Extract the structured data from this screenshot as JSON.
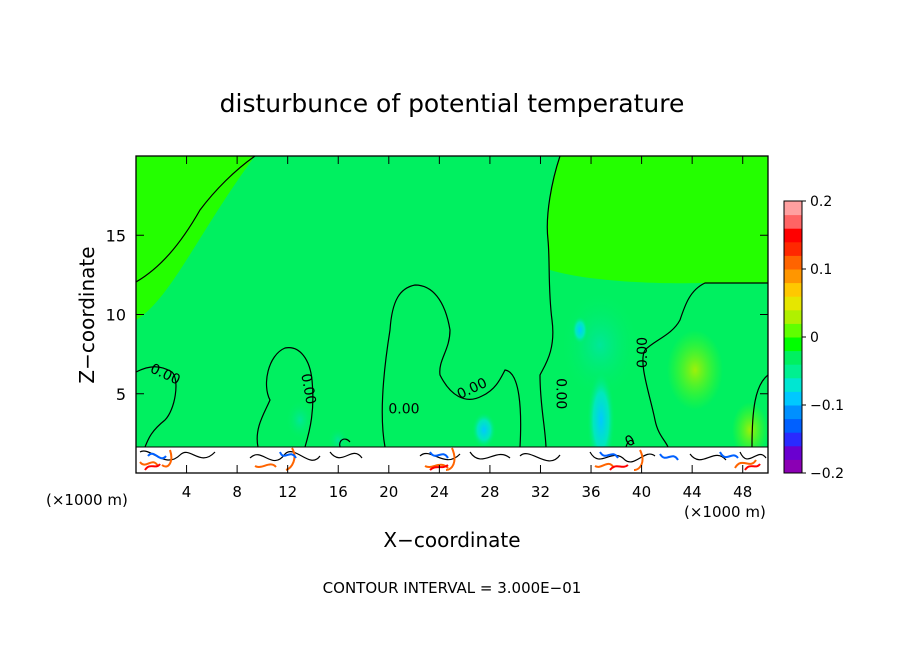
{
  "chart_data": {
    "type": "heatmap",
    "title": "disturbunce of potential temperature",
    "xlabel": "X−coordinate",
    "ylabel": "Z−coordinate",
    "x_unit_left": "(×1000 m)",
    "x_unit_right": "(×1000 m)",
    "footer": "CONTOUR INTERVAL = 3.000E−01",
    "xlim": [
      0,
      50
    ],
    "ylim": [
      0,
      20
    ],
    "x_ticks": [
      4,
      8,
      12,
      16,
      20,
      24,
      28,
      32,
      36,
      40,
      44,
      48
    ],
    "y_ticks": [
      5,
      10,
      15
    ],
    "colorbar": {
      "min": -0.2,
      "max": 0.2,
      "tick_values": [
        0.2,
        0.1,
        0,
        -0.1,
        -0.2
      ],
      "tick_labels": [
        "0.2",
        "0.1",
        "0",
        "−0.1",
        "−0.2"
      ],
      "colors": [
        "#8b00b4",
        "#6a00d0",
        "#2a2aff",
        "#0060ff",
        "#0090ff",
        "#00c8ff",
        "#00e6d2",
        "#00f090",
        "#00f060",
        "#00ff00",
        "#60ff00",
        "#b0f000",
        "#e6e600",
        "#ffc800",
        "#ff9600",
        "#ff6400",
        "#ff2800",
        "#ff0000",
        "#ff6464",
        "#ffa0a0"
      ]
    },
    "contour_labels": [
      {
        "text": "0.00",
        "x": 2.3,
        "z": 6.2,
        "angle": 25
      },
      {
        "text": "0.00",
        "x": 13.6,
        "z": 5.3,
        "angle": 80
      },
      {
        "text": "0.00",
        "x": 21.2,
        "z": 4.0,
        "angle": 0
      },
      {
        "text": "0.00",
        "x": 26.6,
        "z": 5.3,
        "angle": -25
      },
      {
        "text": "0.00",
        "x": 33.6,
        "z": 5.0,
        "angle": 90
      },
      {
        "text": "0.00",
        "x": 40.1,
        "z": 7.6,
        "angle": -90
      },
      {
        "text": "0",
        "x": 39.1,
        "z": 2.0,
        "angle": -30
      }
    ]
  }
}
